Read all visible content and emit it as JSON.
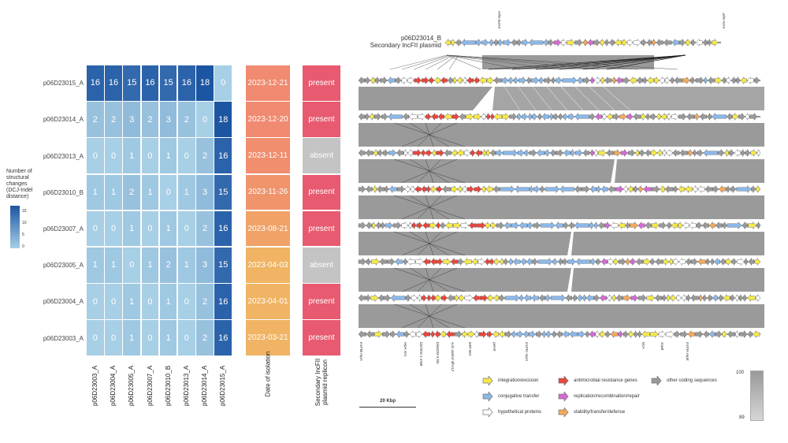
{
  "chart_data": {
    "type": "heatmap",
    "rows": [
      "p06D23015_A",
      "p06D23014_A",
      "p06D23013_A",
      "p06D23010_B",
      "p06D23007_A",
      "p06D23005_A",
      "p06D23004_A",
      "p06D23003_A"
    ],
    "columns": [
      "p06D23003_A",
      "p06D23004_A",
      "p06D23005_A",
      "p06D23007_A",
      "p06D23010_B",
      "p06D23013_A",
      "p06D23014_A",
      "p06D23015_A"
    ],
    "values": [
      [
        16,
        16,
        15,
        16,
        15,
        16,
        18,
        0
      ],
      [
        2,
        2,
        3,
        2,
        3,
        2,
        0,
        18
      ],
      [
        0,
        0,
        1,
        0,
        1,
        0,
        2,
        16
      ],
      [
        1,
        1,
        2,
        1,
        0,
        1,
        3,
        15
      ],
      [
        0,
        0,
        1,
        0,
        1,
        0,
        2,
        16
      ],
      [
        1,
        1,
        0,
        1,
        2,
        1,
        3,
        15
      ],
      [
        0,
        0,
        1,
        0,
        1,
        0,
        2,
        16
      ],
      [
        0,
        0,
        1,
        0,
        1,
        0,
        2,
        16
      ]
    ],
    "colorbar": {
      "title": "Number of structural changes (DCJ-Indel distance)",
      "ticks": [
        0,
        5,
        10,
        15
      ],
      "range": [
        0,
        18
      ],
      "low_color": "#a7cfe6",
      "high_color": "#1c55a2"
    },
    "date_column": {
      "label": "Date of isolation",
      "values": [
        "2023-12-21",
        "2023-12-20",
        "2023-12-11",
        "2023-11-26",
        "2023-08-21",
        "2023-04-03",
        "2023-04-01",
        "2023-03-21"
      ],
      "colors": [
        "#f08a70",
        "#f08a70",
        "#f08e6e",
        "#f0946c",
        "#f0a268",
        "#f0b464",
        "#f0b464",
        "#f0b464"
      ]
    },
    "replicon_column": {
      "label": "Secondary IncFII plasmid replicon",
      "values": [
        "present",
        "present",
        "absent",
        "present",
        "present",
        "absent",
        "present",
        "present"
      ],
      "colors": {
        "present": "#e85a70",
        "absent": "#c4c4c4"
      }
    }
  },
  "plasmid_map": {
    "top_name": "p06D23014_B",
    "top_subtitle": "Secondary IncFII plasmid",
    "top_gene_labels": [
      "IncFII repA",
      "IncN repF"
    ],
    "bottom_gene_labels": [
      "IncFIB repA",
      "repA mrx",
      "blaTEM-1 rmtB",
      "blaNDM-5 ble",
      "sul1 aadA2 dfrA12",
      "tetR tetA",
      "pemK",
      "IncFIC repA",
      "klcA",
      "sopB",
      "IncFIA repE"
    ],
    "scale_bar": "20 Kbp",
    "identity_scale": {
      "max": "100",
      "min": "89"
    },
    "legend": [
      {
        "label": "integration/excision",
        "color": "#f5e94a"
      },
      {
        "label": "conjugative transfer",
        "color": "#8ab8ea"
      },
      {
        "label": "hypothetical proteins",
        "color": "#ffffff"
      },
      {
        "label": "antimicrobial resistance genes",
        "color": "#e8463c"
      },
      {
        "label": "replication/recombination/repair",
        "color": "#d46ad4"
      },
      {
        "label": "stability/transfer/defense",
        "color": "#f5a85a"
      },
      {
        "label": "other coding sequences",
        "color": "#999999"
      }
    ]
  }
}
